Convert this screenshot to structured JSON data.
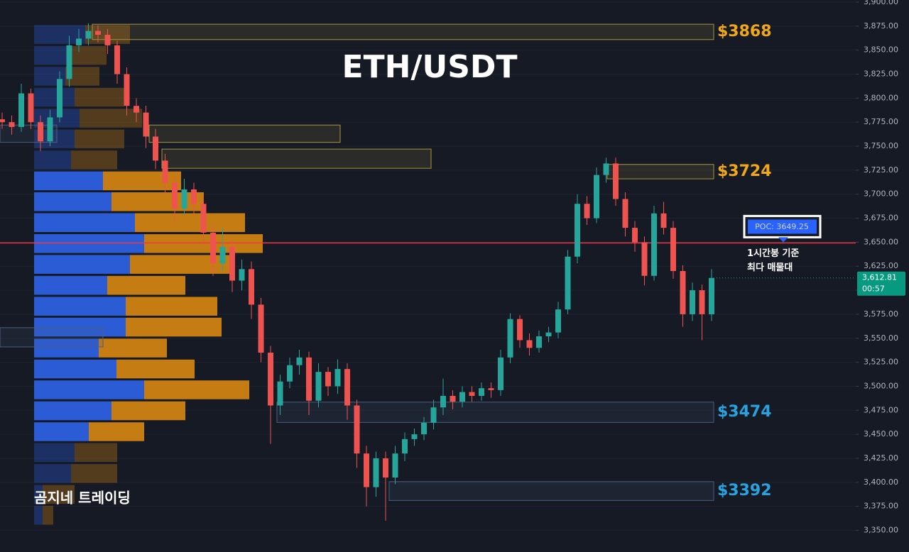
{
  "chart_data": {
    "type": "candlestick",
    "title": "ETH/USDT",
    "watermark": "곰지네 트레이딩",
    "up_color": "#26a69a",
    "down_color": "#ef5350",
    "grid": true,
    "ylim": [
      3340,
      3900
    ],
    "yticks": [
      {
        "value": 3350,
        "label": "3,350.00"
      },
      {
        "value": 3375,
        "label": "3,375.00"
      },
      {
        "value": 3400,
        "label": "3,400.00"
      },
      {
        "value": 3425,
        "label": "3,425.00"
      },
      {
        "value": 3450,
        "label": "3,450.00"
      },
      {
        "value": 3475,
        "label": "3,475.00"
      },
      {
        "value": 3500,
        "label": "3,500.00"
      },
      {
        "value": 3525,
        "label": "3,525.00"
      },
      {
        "value": 3550,
        "label": "3,550.00"
      },
      {
        "value": 3575,
        "label": "3,575.00"
      },
      {
        "value": 3600,
        "label": "3,600.00"
      },
      {
        "value": 3625,
        "label": "3,625.00"
      },
      {
        "value": 3650,
        "label": "3,650.00"
      },
      {
        "value": 3675,
        "label": "3,675.00"
      },
      {
        "value": 3700,
        "label": "3,700.00"
      },
      {
        "value": 3725,
        "label": "3,725.00"
      },
      {
        "value": 3750,
        "label": "3,750.00"
      },
      {
        "value": 3775,
        "label": "3,775.00"
      },
      {
        "value": 3800,
        "label": "3,800.00"
      },
      {
        "value": 3825,
        "label": "3,825.00"
      },
      {
        "value": 3850,
        "label": "3,850.00"
      },
      {
        "value": 3875,
        "label": "3,875.00"
      },
      {
        "value": 3900,
        "label": "3,900.00"
      }
    ],
    "open": [
      3778,
      3775,
      3770,
      3805,
      3775,
      3755,
      3780,
      3820,
      3855,
      3862,
      3870,
      3866,
      3855,
      3825,
      3792,
      3785,
      3760,
      3735,
      3712,
      3685,
      3705,
      3690,
      3660,
      3628,
      3645,
      3610,
      3622,
      3585,
      3535,
      3480,
      3505,
      3522,
      3530,
      3485,
      3515,
      3500,
      3518,
      3480,
      3430,
      3395,
      3425,
      3405,
      3430,
      3445,
      3450,
      3462,
      3478,
      3490,
      3484,
      3494,
      3490,
      3498,
      3496,
      3530,
      3570,
      3548,
      3540,
      3552,
      3556,
      3580,
      3635,
      3690,
      3675,
      3720,
      3732,
      3695,
      3665,
      3650,
      3615,
      3680,
      3665,
      3620,
      3575,
      3600,
      3575
    ],
    "high": [
      3785,
      3782,
      3815,
      3810,
      3782,
      3788,
      3828,
      3865,
      3872,
      3878,
      3876,
      3872,
      3860,
      3832,
      3800,
      3792,
      3768,
      3742,
      3718,
      3716,
      3712,
      3698,
      3668,
      3665,
      3652,
      3632,
      3630,
      3592,
      3542,
      3512,
      3530,
      3538,
      3536,
      3524,
      3520,
      3528,
      3524,
      3486,
      3438,
      3432,
      3432,
      3438,
      3452,
      3456,
      3468,
      3486,
      3508,
      3496,
      3500,
      3500,
      3504,
      3504,
      3538,
      3576,
      3574,
      3555,
      3558,
      3562,
      3588,
      3642,
      3700,
      3698,
      3728,
      3738,
      3738,
      3702,
      3672,
      3656,
      3688,
      3692,
      3672,
      3626,
      3608,
      3606,
      3622
    ],
    "low": [
      3768,
      3762,
      3765,
      3768,
      3745,
      3750,
      3775,
      3812,
      3848,
      3855,
      3858,
      3846,
      3815,
      3782,
      3775,
      3748,
      3726,
      3700,
      3672,
      3678,
      3680,
      3650,
      3615,
      3620,
      3598,
      3600,
      3570,
      3525,
      3440,
      3470,
      3498,
      3512,
      3470,
      3478,
      3490,
      3492,
      3465,
      3415,
      3375,
      3385,
      3360,
      3398,
      3422,
      3438,
      3444,
      3455,
      3470,
      3476,
      3478,
      3484,
      3485,
      3488,
      3490,
      3524,
      3540,
      3532,
      3535,
      3546,
      3550,
      3575,
      3628,
      3668,
      3670,
      3712,
      3688,
      3656,
      3640,
      3605,
      3610,
      3658,
      3612,
      3562,
      3568,
      3548,
      3568
    ],
    "close": [
      3775,
      3770,
      3805,
      3775,
      3755,
      3780,
      3820,
      3855,
      3862,
      3870,
      3866,
      3855,
      3825,
      3792,
      3785,
      3760,
      3735,
      3712,
      3685,
      3705,
      3690,
      3660,
      3628,
      3645,
      3610,
      3622,
      3585,
      3535,
      3480,
      3505,
      3522,
      3530,
      3485,
      3515,
      3500,
      3518,
      3480,
      3430,
      3395,
      3425,
      3405,
      3430,
      3445,
      3450,
      3462,
      3478,
      3490,
      3484,
      3494,
      3490,
      3498,
      3496,
      3530,
      3570,
      3548,
      3540,
      3552,
      3556,
      3580,
      3635,
      3690,
      3675,
      3720,
      3732,
      3695,
      3665,
      3650,
      3615,
      3680,
      3665,
      3620,
      3575,
      3600,
      3575,
      3612.81
    ],
    "last_price": {
      "value": 3612.81,
      "label": "3,612.81",
      "countdown": "00:57",
      "color": "#089981"
    },
    "poc": {
      "value": 3649.25,
      "label": "POC: 3649.25",
      "note": [
        "1시간봉 기준",
        "최다 매물대"
      ],
      "color": "#f23645"
    },
    "volume_profile": {
      "levels": [
        3866.3,
        3844.5,
        3822.8,
        3801.0,
        3779.2,
        3757.5,
        3735.7,
        3713.9,
        3692.2,
        3670.4,
        3648.6,
        3626.9,
        3605.1,
        3583.3,
        3561.6,
        3539.8,
        3518.0,
        3496.3,
        3474.5,
        3452.7,
        3431.0,
        3409.2,
        3387.4,
        3365.7
      ],
      "buy": [
        72,
        52,
        44,
        57,
        64,
        57,
        52,
        97,
        109,
        142,
        155,
        135,
        103,
        129,
        129,
        91,
        116,
        155,
        109,
        77,
        57,
        52,
        12,
        12
      ],
      "sell": [
        63,
        50,
        48,
        70,
        88,
        70,
        65,
        110,
        130,
        155,
        167,
        147,
        110,
        129,
        135,
        96,
        110,
        148,
        104,
        78,
        60,
        65,
        45,
        15
      ],
      "buy_color": "#2b5cd6",
      "sell_color": "#c57c12",
      "value_area": [
        3440,
        3725
      ]
    },
    "zones": [
      {
        "label": "$3868",
        "top": 3877,
        "bottom": 3861,
        "color": "#a89440",
        "label_color": "#f0a818"
      },
      {
        "top": 3772,
        "bottom": 3754,
        "color": "#a89440"
      },
      {
        "top": 3747,
        "bottom": 3727,
        "color": "#a89440"
      },
      {
        "label": "$3724",
        "top": 3731,
        "bottom": 3716,
        "color": "#a89440",
        "label_color": "#f0a818"
      },
      {
        "label": "$3474",
        "top": 3483.5,
        "bottom": 3462.4,
        "color": "#4d5e80",
        "label_color": "#29a3e0"
      },
      {
        "label": "$3392",
        "top": 3400.7,
        "bottom": 3381.1,
        "color": "#4d5e80",
        "label_color": "#29a3e0"
      },
      {
        "top": 3772,
        "bottom": 3754,
        "color": "#4d5e80"
      },
      {
        "top": 3561,
        "bottom": 3541,
        "color": "#4d5e80"
      }
    ]
  }
}
